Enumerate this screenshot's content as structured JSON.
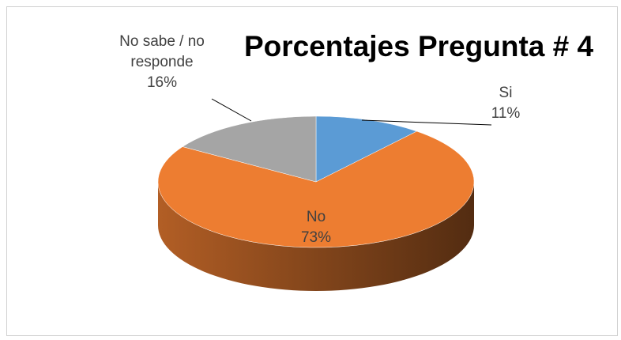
{
  "chart_data": {
    "type": "pie3d",
    "title": "Porcentajes Pregunta # 4",
    "categories": [
      "Si",
      "No",
      "No sabe / no responde"
    ],
    "values": [
      11,
      73,
      16
    ],
    "value_labels": [
      "11%",
      "73%",
      "16%"
    ],
    "colors": [
      "#5b9bd5",
      "#ed7d31",
      "#a5a5a5"
    ]
  }
}
